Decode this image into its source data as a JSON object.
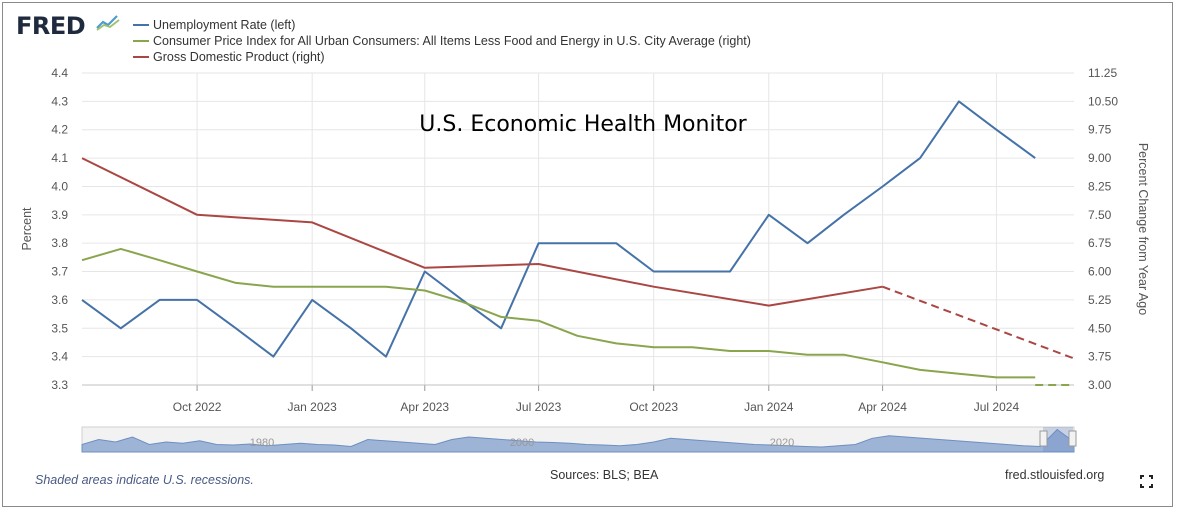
{
  "header": {
    "logo_text": "FRED",
    "legend": [
      {
        "label": "Unemployment Rate (left)",
        "color": "#4572a7"
      },
      {
        "label": "Consumer Price Index for All Urban Consumers: All Items Less Food and Energy in U.S. City Average (right)",
        "color": "#89a54e"
      },
      {
        "label": "Gross Domestic Product (right)",
        "color": "#aa4643"
      }
    ]
  },
  "chart_data": {
    "type": "line",
    "title": "U.S. Economic Health Monitor",
    "ylabel": "Percent",
    "y2label": "Percent Change from Year Ago",
    "ylim": [
      3.3,
      4.4
    ],
    "y2lim": [
      3.0,
      11.25
    ],
    "yticks": [
      "4.4",
      "4.3",
      "4.2",
      "4.1",
      "4.0",
      "3.9",
      "3.8",
      "3.7",
      "3.6",
      "3.5",
      "3.4",
      "3.3"
    ],
    "y2ticks": [
      "11.25",
      "10.50",
      "9.75",
      "9.00",
      "8.25",
      "7.50",
      "6.75",
      "6.00",
      "5.25",
      "4.50",
      "3.75",
      "3.00"
    ],
    "xlim": [
      "2022-07-01",
      "2024-09-01"
    ],
    "xticks": [
      {
        "date": "2022-10-01",
        "label": "Oct 2022"
      },
      {
        "date": "2023-01-01",
        "label": "Jan 2023"
      },
      {
        "date": "2023-04-01",
        "label": "Apr 2023"
      },
      {
        "date": "2023-07-01",
        "label": "Jul 2023"
      },
      {
        "date": "2023-10-01",
        "label": "Oct 2023"
      },
      {
        "date": "2024-01-01",
        "label": "Jan 2024"
      },
      {
        "date": "2024-04-01",
        "label": "Apr 2024"
      },
      {
        "date": "2024-07-01",
        "label": "Jul 2024"
      }
    ],
    "grid": true,
    "series": [
      {
        "name": "Unemployment Rate (left)",
        "axis": "left",
        "color": "#4572a7",
        "points": [
          [
            "2022-07-01",
            3.6
          ],
          [
            "2022-08-01",
            3.5
          ],
          [
            "2022-09-01",
            3.6
          ],
          [
            "2022-10-01",
            3.6
          ],
          [
            "2022-11-01",
            3.5
          ],
          [
            "2022-12-01",
            3.4
          ],
          [
            "2023-01-01",
            3.6
          ],
          [
            "2023-02-01",
            3.5
          ],
          [
            "2023-03-01",
            3.4
          ],
          [
            "2023-04-01",
            3.7
          ],
          [
            "2023-05-01",
            3.6
          ],
          [
            "2023-06-01",
            3.5
          ],
          [
            "2023-07-01",
            3.8
          ],
          [
            "2023-08-01",
            3.8
          ],
          [
            "2023-09-01",
            3.8
          ],
          [
            "2023-10-01",
            3.7
          ],
          [
            "2023-11-01",
            3.7
          ],
          [
            "2023-12-01",
            3.7
          ],
          [
            "2024-01-01",
            3.9
          ],
          [
            "2024-02-01",
            3.8
          ],
          [
            "2024-03-01",
            3.9
          ],
          [
            "2024-04-01",
            4.0
          ],
          [
            "2024-05-01",
            4.1
          ],
          [
            "2024-06-01",
            4.3
          ],
          [
            "2024-07-01",
            4.2
          ],
          [
            "2024-08-01",
            4.1
          ]
        ]
      },
      {
        "name": "Consumer Price Index for All Urban Consumers: All Items Less Food and Energy in U.S. City Average (right)",
        "axis": "right",
        "color": "#89a54e",
        "points": [
          [
            "2022-07-01",
            6.3
          ],
          [
            "2022-08-01",
            6.6
          ],
          [
            "2022-09-01",
            6.3
          ],
          [
            "2022-10-01",
            6.0
          ],
          [
            "2022-11-01",
            5.7
          ],
          [
            "2022-12-01",
            5.6
          ],
          [
            "2023-01-01",
            5.6
          ],
          [
            "2023-02-01",
            5.6
          ],
          [
            "2023-03-01",
            5.6
          ],
          [
            "2023-04-01",
            5.5
          ],
          [
            "2023-05-01",
            5.2
          ],
          [
            "2023-06-01",
            4.8
          ],
          [
            "2023-07-01",
            4.7
          ],
          [
            "2023-08-01",
            4.3
          ],
          [
            "2023-09-01",
            4.1
          ],
          [
            "2023-10-01",
            4.0
          ],
          [
            "2023-11-01",
            4.0
          ],
          [
            "2023-12-01",
            3.9
          ],
          [
            "2024-01-01",
            3.9
          ],
          [
            "2024-02-01",
            3.8
          ],
          [
            "2024-03-01",
            3.8
          ],
          [
            "2024-04-01",
            3.6
          ],
          [
            "2024-05-01",
            3.4
          ],
          [
            "2024-06-01",
            3.3
          ],
          [
            "2024-07-01",
            3.2
          ],
          [
            "2024-08-01",
            3.2
          ]
        ],
        "projection": [
          [
            "2024-08-01",
            3.0
          ],
          [
            "2024-09-01",
            3.0
          ]
        ]
      },
      {
        "name": "Gross Domestic Product (right)",
        "axis": "right",
        "color": "#aa4643",
        "points": [
          [
            "2022-07-01",
            9.0
          ],
          [
            "2022-10-01",
            7.5
          ],
          [
            "2023-01-01",
            7.3
          ],
          [
            "2023-04-01",
            6.1
          ],
          [
            "2023-07-01",
            6.2
          ],
          [
            "2023-10-01",
            5.6
          ],
          [
            "2024-01-01",
            5.1
          ],
          [
            "2024-04-01",
            5.6
          ]
        ],
        "projection": [
          [
            "2024-04-01",
            5.6
          ],
          [
            "2024-09-01",
            3.7
          ]
        ]
      }
    ]
  },
  "navigator": {
    "labels": [
      "1980",
      "2000",
      "2020"
    ]
  },
  "footer": {
    "note": "Shaded areas indicate U.S. recessions.",
    "sources": "Sources: BLS; BEA",
    "url": "fred.stlouisfed.org"
  }
}
